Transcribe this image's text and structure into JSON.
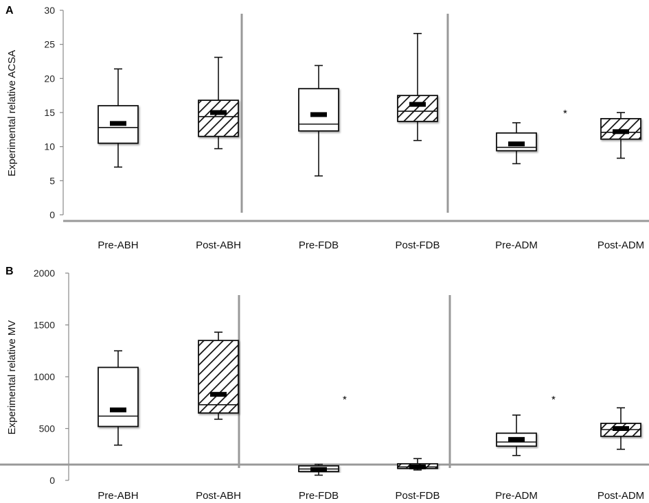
{
  "chart_data": [
    {
      "type": "box",
      "panel_label": "A",
      "ylabel": "Experimental relative ACSA",
      "ylim": [
        0,
        30
      ],
      "yticks": [
        0,
        5,
        10,
        15,
        20,
        25,
        30
      ],
      "categories": [
        "Pre-ABH",
        "Post-ABH",
        "Pre-FDB",
        "Post-FDB",
        "Pre-ADM",
        "Post-ADM"
      ],
      "boxes": [
        {
          "label": "Pre-ABH",
          "min": 7.0,
          "q1": 10.5,
          "median": 12.8,
          "q3": 16.0,
          "max": 21.4,
          "mean": 13.4,
          "hatched": false
        },
        {
          "label": "Post-ABH",
          "min": 9.7,
          "q1": 11.5,
          "median": 14.4,
          "q3": 16.8,
          "max": 23.1,
          "mean": 15.0,
          "hatched": true
        },
        {
          "label": "Pre-FDB",
          "min": 5.7,
          "q1": 12.3,
          "median": 13.3,
          "q3": 18.5,
          "max": 21.9,
          "mean": 14.7,
          "hatched": false
        },
        {
          "label": "Post-FDB",
          "min": 10.9,
          "q1": 13.7,
          "median": 15.2,
          "q3": 17.5,
          "max": 26.6,
          "mean": 16.2,
          "hatched": true
        },
        {
          "label": "Pre-ADM",
          "min": 7.5,
          "q1": 9.4,
          "median": 9.9,
          "q3": 12.0,
          "max": 13.5,
          "mean": 10.4,
          "hatched": false
        },
        {
          "label": "Post-ADM",
          "min": 8.3,
          "q1": 11.1,
          "median": 12.1,
          "q3": 14.1,
          "max": 15.0,
          "mean": 12.2,
          "hatched": true
        }
      ],
      "annotations": [
        {
          "text": "*",
          "near": "Post-ADM"
        }
      ]
    },
    {
      "type": "box",
      "panel_label": "B",
      "ylabel": "Experimental relative MV",
      "ylim": [
        0,
        2000
      ],
      "yticks": [
        0,
        500,
        1000,
        1500,
        2000
      ],
      "categories": [
        "Pre-ABH",
        "Post-ABH",
        "Pre-FDB",
        "Post-FDB",
        "Pre-ADM",
        "Post-ADM"
      ],
      "boxes": [
        {
          "label": "Pre-ABH",
          "min": 340,
          "q1": 520,
          "median": 620,
          "q3": 1090,
          "max": 1250,
          "mean": 680,
          "hatched": false
        },
        {
          "label": "Post-ABH",
          "min": 590,
          "q1": 650,
          "median": 730,
          "q3": 1350,
          "max": 1430,
          "mean": 830,
          "hatched": true
        },
        {
          "label": "Pre-FDB",
          "min": 50,
          "q1": 85,
          "median": 110,
          "q3": 140,
          "max": 155,
          "mean": 105,
          "hatched": false
        },
        {
          "label": "Post-FDB",
          "min": 100,
          "q1": 115,
          "median": 130,
          "q3": 160,
          "max": 210,
          "mean": 130,
          "hatched": true
        },
        {
          "label": "Pre-ADM",
          "min": 240,
          "q1": 330,
          "median": 370,
          "q3": 455,
          "max": 630,
          "mean": 395,
          "hatched": false
        },
        {
          "label": "Post-ADM",
          "min": 300,
          "q1": 425,
          "median": 490,
          "q3": 550,
          "max": 700,
          "mean": 500,
          "hatched": true
        }
      ],
      "annotations": [
        {
          "text": "*",
          "near": "Pre-FDB"
        },
        {
          "text": "*",
          "near": "Pre-ADM"
        }
      ]
    }
  ]
}
